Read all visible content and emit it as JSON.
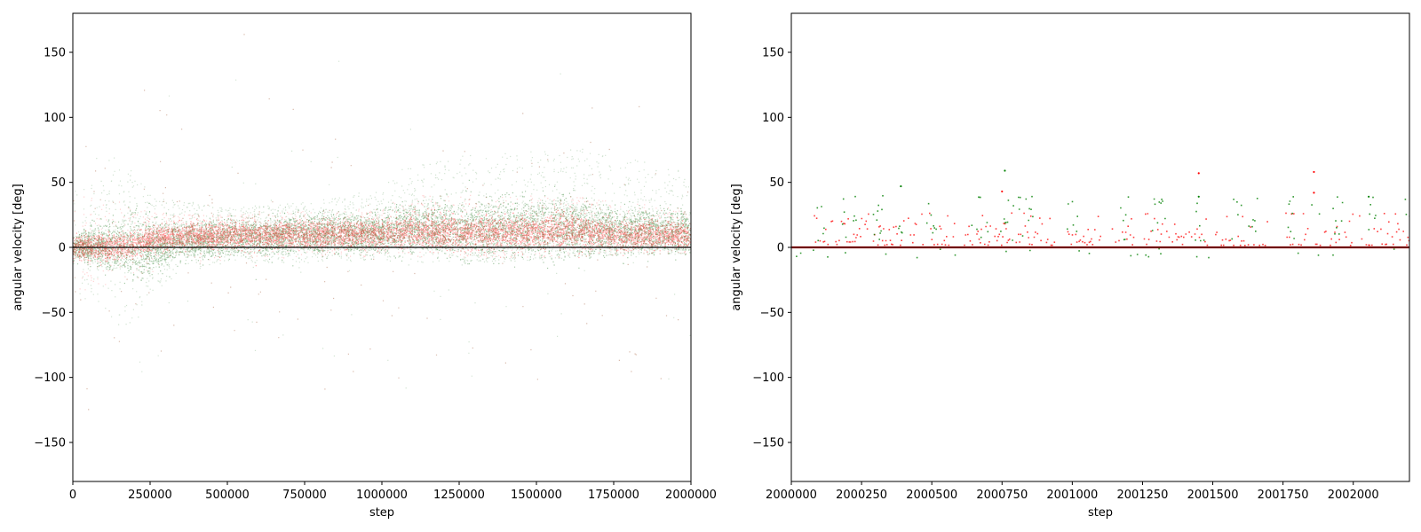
{
  "chart_data": [
    {
      "type": "scatter",
      "xlabel": "step",
      "ylabel": "angular velocity [deg]",
      "xlim": [
        0,
        2000000
      ],
      "ylim": [
        -180,
        180
      ],
      "x_ticks": [
        0,
        250000,
        500000,
        750000,
        1000000,
        1250000,
        1500000,
        1750000,
        2000000
      ],
      "x_tick_labels": [
        "0",
        "250000",
        "500000",
        "750000",
        "1000000",
        "1250000",
        "1500000",
        "1750000",
        "2000000"
      ],
      "y_ticks": [
        -150,
        -100,
        -50,
        0,
        50,
        100,
        150
      ],
      "y_tick_labels": [
        "−150",
        "−100",
        "−50",
        "0",
        "50",
        "100",
        "150"
      ],
      "grid": false,
      "colors": {
        "series_green": "#006400",
        "series_red": "#ff0000",
        "zero_line": "#000000"
      },
      "series": [
        {
          "color": "#006400",
          "envelope": {
            "x": [
              0,
              150000,
              200000,
              250000,
              350000,
              500000,
              750000,
              1000000,
              1050000,
              1250000,
              1500000,
              1600000,
              1750000,
              2000000
            ],
            "core_upper": [
              8,
              20,
              25,
              18,
              18,
              20,
              22,
              24,
              30,
              32,
              35,
              35,
              28,
              26
            ],
            "core_lower": [
              -8,
              -18,
              -25,
              -18,
              -8,
              -5,
              -3,
              -2,
              -2,
              -3,
              -4,
              -4,
              -2,
              -2
            ],
            "outer_upper": [
              40,
              60,
              60,
              40,
              35,
              30,
              35,
              45,
              60,
              70,
              75,
              78,
              70,
              60
            ],
            "outer_lower": [
              -40,
              -60,
              -60,
              -35,
              -20,
              -12,
              -12,
              -10,
              -12,
              -12,
              -10,
              -8,
              -6,
              -6
            ]
          }
        },
        {
          "color": "#ff0000",
          "envelope": {
            "x": [
              0,
              150000,
              200000,
              250000,
              350000,
              500000,
              750000,
              1000000,
              1050000,
              1250000,
              1500000,
              1600000,
              1750000,
              2000000
            ],
            "core_upper": [
              8,
              10,
              12,
              15,
              17,
              18,
              18,
              20,
              22,
              22,
              22,
              25,
              18,
              18
            ],
            "core_lower": [
              -8,
              -8,
              -8,
              -2,
              0,
              0,
              1,
              1,
              1,
              1,
              1,
              0,
              0,
              0
            ],
            "outer_upper": [
              40,
              35,
              30,
              28,
              25,
              25,
              28,
              30,
              40,
              40,
              40,
              40,
              35,
              30
            ],
            "outer_lower": [
              -40,
              -30,
              -25,
              -20,
              -15,
              -10,
              -8,
              -8,
              -8,
              -8,
              -8,
              -8,
              -6,
              -6
            ]
          }
        }
      ],
      "zero_line": 0
    },
    {
      "type": "scatter",
      "xlabel": "step",
      "ylabel": "angular velocity [deg]",
      "xlim": [
        2000000,
        2002200
      ],
      "ylim": [
        -180,
        180
      ],
      "x_ticks": [
        2000000,
        2000250,
        2000500,
        2000750,
        2001000,
        2001250,
        2001500,
        2001750,
        2002000
      ],
      "x_tick_labels": [
        "2000000",
        "2000250",
        "2000500",
        "2000750",
        "2001000",
        "2001250",
        "2001500",
        "2001750",
        "2002000"
      ],
      "y_ticks": [
        -150,
        -100,
        -50,
        0,
        50,
        100,
        150
      ],
      "y_tick_labels": [
        "−150",
        "−100",
        "−50",
        "0",
        "50",
        "100",
        "150"
      ],
      "grid": false,
      "colors": {
        "series_green": "#008000",
        "series_red": "#ff0000",
        "zero_line": "#000000"
      },
      "series": [
        {
          "color": "#008000",
          "bursts": [
            [
              2000090,
              2000120
            ],
            [
              2000180,
              2000230
            ],
            [
              2000290,
              2000330
            ],
            [
              2000380,
              2000400
            ],
            [
              2000480,
              2000520
            ],
            [
              2000640,
              2000700
            ],
            [
              2000740,
              2000790
            ],
            [
              2000800,
              2000860
            ],
            [
              2000980,
              2001020
            ],
            [
              2001170,
              2001200
            ],
            [
              2001280,
              2001330
            ],
            [
              2001430,
              2001470
            ],
            [
              2001560,
              2001600
            ],
            [
              2001620,
              2001660
            ],
            [
              2001760,
              2001790
            ],
            [
              2001850,
              2001880
            ],
            [
              2001920,
              2001960
            ],
            [
              2002050,
              2002080
            ],
            [
              2002180,
              2002200
            ]
          ],
          "burst_value_range": [
            5,
            40
          ],
          "outliers": [
            {
              "x": 2000760,
              "y": 59
            },
            {
              "x": 2000390,
              "y": 47
            },
            {
              "x": 2001450,
              "y": 39
            },
            {
              "x": 2002055,
              "y": 39
            }
          ]
        },
        {
          "color": "#ff0000",
          "bursts": [
            [
              2000080,
              2000280
            ],
            [
              2000290,
              2000580
            ],
            [
              2000610,
              2000940
            ],
            [
              2000970,
              2001100
            ],
            [
              2001140,
              2001220
            ],
            [
              2001250,
              2001480
            ],
            [
              2001500,
              2001700
            ],
            [
              2001750,
              2001790
            ],
            [
              2001800,
              2002000
            ],
            [
              2002020,
              2002200
            ]
          ],
          "level_values": [
            2,
            4,
            5,
            6,
            8,
            10,
            12,
            14,
            16,
            18,
            20,
            22,
            24,
            26
          ],
          "outliers": [
            {
              "x": 2001450,
              "y": 57
            },
            {
              "x": 2001860,
              "y": 58
            },
            {
              "x": 2001860,
              "y": 42
            },
            {
              "x": 2000750,
              "y": 43
            }
          ]
        }
      ],
      "zero_line": 0
    }
  ]
}
